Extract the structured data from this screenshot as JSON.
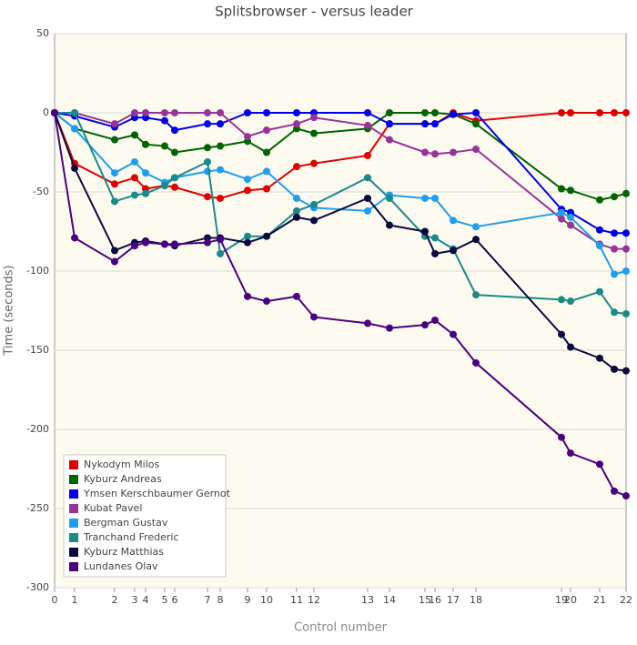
{
  "chart_data": {
    "type": "line",
    "title": "Splitsbrowser - versus leader",
    "x_label": "Control number",
    "y_label": "Time (seconds)",
    "x": [
      0,
      22,
      66,
      88,
      100,
      121,
      132,
      168,
      182,
      212,
      233,
      266,
      285,
      344,
      368,
      407,
      418,
      438,
      463,
      557,
      567,
      599,
      615,
      628
    ],
    "xlim": [
      0,
      628
    ],
    "xticks": [
      0,
      {
        "value": 22,
        "label": "1"
      },
      {
        "value": 66,
        "label": "2"
      },
      {
        "value": 88,
        "label": "3"
      },
      {
        "value": 100,
        "label": "4"
      },
      {
        "value": 121,
        "label": "5"
      },
      {
        "value": 132,
        "label": "6"
      },
      {
        "value": 168,
        "label": "7"
      },
      {
        "value": 182,
        "label": "8"
      },
      {
        "value": 212,
        "label": "9"
      },
      {
        "value": 233,
        "label": "10"
      },
      {
        "value": 266,
        "label": "11"
      },
      {
        "value": 285,
        "label": "12"
      },
      {
        "value": 344,
        "label": "13"
      },
      {
        "value": 368,
        "label": "14"
      },
      {
        "value": 407,
        "label": "15"
      },
      {
        "value": 418,
        "label": "16"
      },
      {
        "value": 438,
        "label": "17"
      },
      {
        "value": 463,
        "label": "18"
      },
      {
        "value": 557,
        "label": "19"
      },
      {
        "value": 567,
        "label": "20"
      },
      {
        "value": 599,
        "label": "21"
      },
      {
        "value": 628,
        "label": "22"
      }
    ],
    "ylim": [
      -300,
      50
    ],
    "yticks": [
      50,
      0,
      -50,
      -100,
      -150,
      -200,
      -250,
      -300
    ],
    "grid": true,
    "legend": "lower left",
    "series": [
      {
        "name": "Nykodym Milos",
        "color": "#e00000",
        "values": [
          0,
          -32,
          -45,
          -41,
          -48,
          -46,
          -47,
          -53,
          -54,
          -49,
          -48,
          -34,
          -32,
          -27,
          -7,
          -7,
          -7,
          0,
          -5,
          0,
          0,
          0,
          0,
          0
        ]
      },
      {
        "name": "Kyburz Andreas",
        "color": "#006400",
        "values": [
          0,
          -10,
          -17,
          -14,
          -20,
          -21,
          -25,
          -22,
          -21,
          -18,
          -25,
          -10,
          -13,
          -10,
          0,
          0,
          0,
          -1,
          -7,
          -48,
          -49,
          -55,
          -53,
          -51
        ]
      },
      {
        "name": "Ymsen Kerschbaumer Gernot",
        "color": "#0000ee",
        "values": [
          0,
          -2,
          -9,
          -3,
          -3,
          -5,
          -11,
          -7,
          -7,
          0,
          0,
          0,
          0,
          0,
          -7,
          -7,
          -7,
          -1,
          0,
          -61,
          -63,
          -74,
          -76,
          -76
        ]
      },
      {
        "name": "Kubat Pavel",
        "color": "#993399",
        "values": [
          0,
          0,
          -7,
          0,
          0,
          0,
          0,
          0,
          0,
          -15,
          -11,
          -7,
          -3,
          -8,
          -17,
          -25,
          -26,
          -25,
          -23,
          -67,
          -71,
          -83,
          -86,
          -86
        ]
      },
      {
        "name": "Bergman Gustav",
        "color": "#1e9ef0",
        "values": [
          0,
          -10,
          -38,
          -31,
          -38,
          -44,
          -41,
          -37,
          -36,
          -42,
          -37,
          -54,
          -60,
          -62,
          -52,
          -54,
          -54,
          -68,
          -72,
          -63,
          -66,
          -84,
          -102,
          -100
        ]
      },
      {
        "name": "Tranchand Frederic",
        "color": "#1a8a8a",
        "values": [
          0,
          0,
          -56,
          -52,
          -51,
          -46,
          -41,
          -31,
          -89,
          -78,
          -78,
          -62,
          -58,
          -41,
          -54,
          -78,
          -79,
          -86,
          -115,
          -118,
          -119,
          -113,
          -126,
          -127
        ]
      },
      {
        "name": "Kyburz Matthias",
        "color": "#0a0a40",
        "values": [
          0,
          -35,
          -87,
          -82,
          -81,
          -83,
          -84,
          -79,
          -79,
          -82,
          -78,
          -66,
          -68,
          -54,
          -71,
          -75,
          -89,
          -87,
          -80,
          -140,
          -148,
          -155,
          -162,
          -163
        ]
      },
      {
        "name": "Lundanes Olav",
        "color": "#4b0082",
        "values": [
          0,
          -79,
          -94,
          -84,
          -82,
          -83,
          -83,
          -82,
          -80,
          -116,
          -119,
          -116,
          -129,
          -133,
          -136,
          -134,
          -131,
          -140,
          -158,
          -205,
          -215,
          -222,
          -239,
          -242
        ]
      }
    ]
  }
}
